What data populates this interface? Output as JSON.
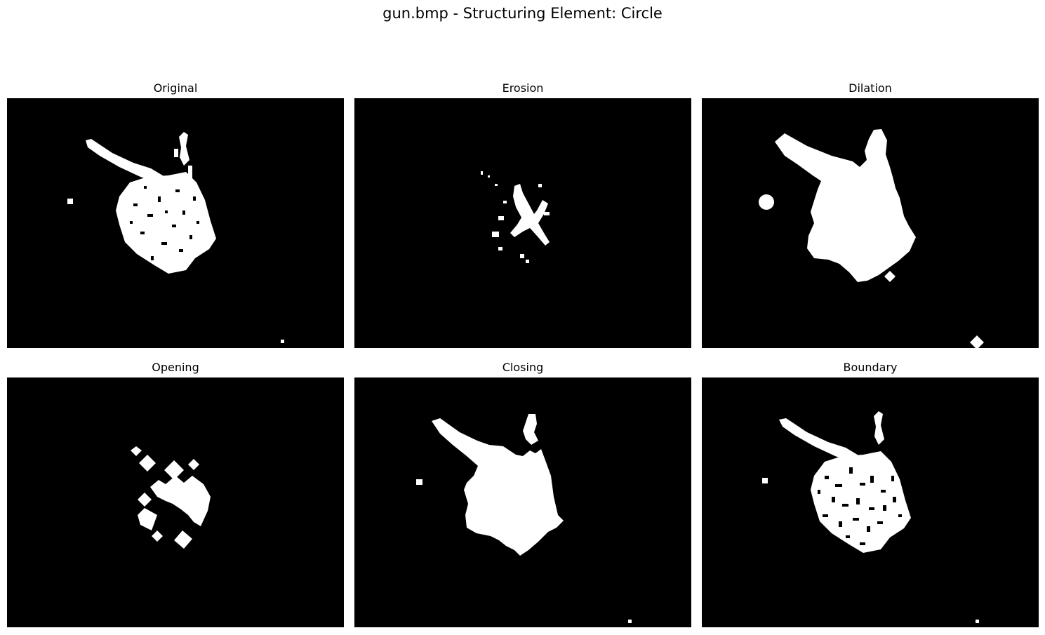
{
  "figure": {
    "title": "gun.bmp - Structuring Element: Circle",
    "panels": [
      {
        "key": "original",
        "title": "Original"
      },
      {
        "key": "erosion",
        "title": "Erosion"
      },
      {
        "key": "dilation",
        "title": "Dilation"
      },
      {
        "key": "opening",
        "title": "Opening"
      },
      {
        "key": "closing",
        "title": "Closing"
      },
      {
        "key": "boundary",
        "title": "Boundary"
      }
    ]
  },
  "colors": {
    "background": "#000000",
    "foreground": "#ffffff"
  }
}
